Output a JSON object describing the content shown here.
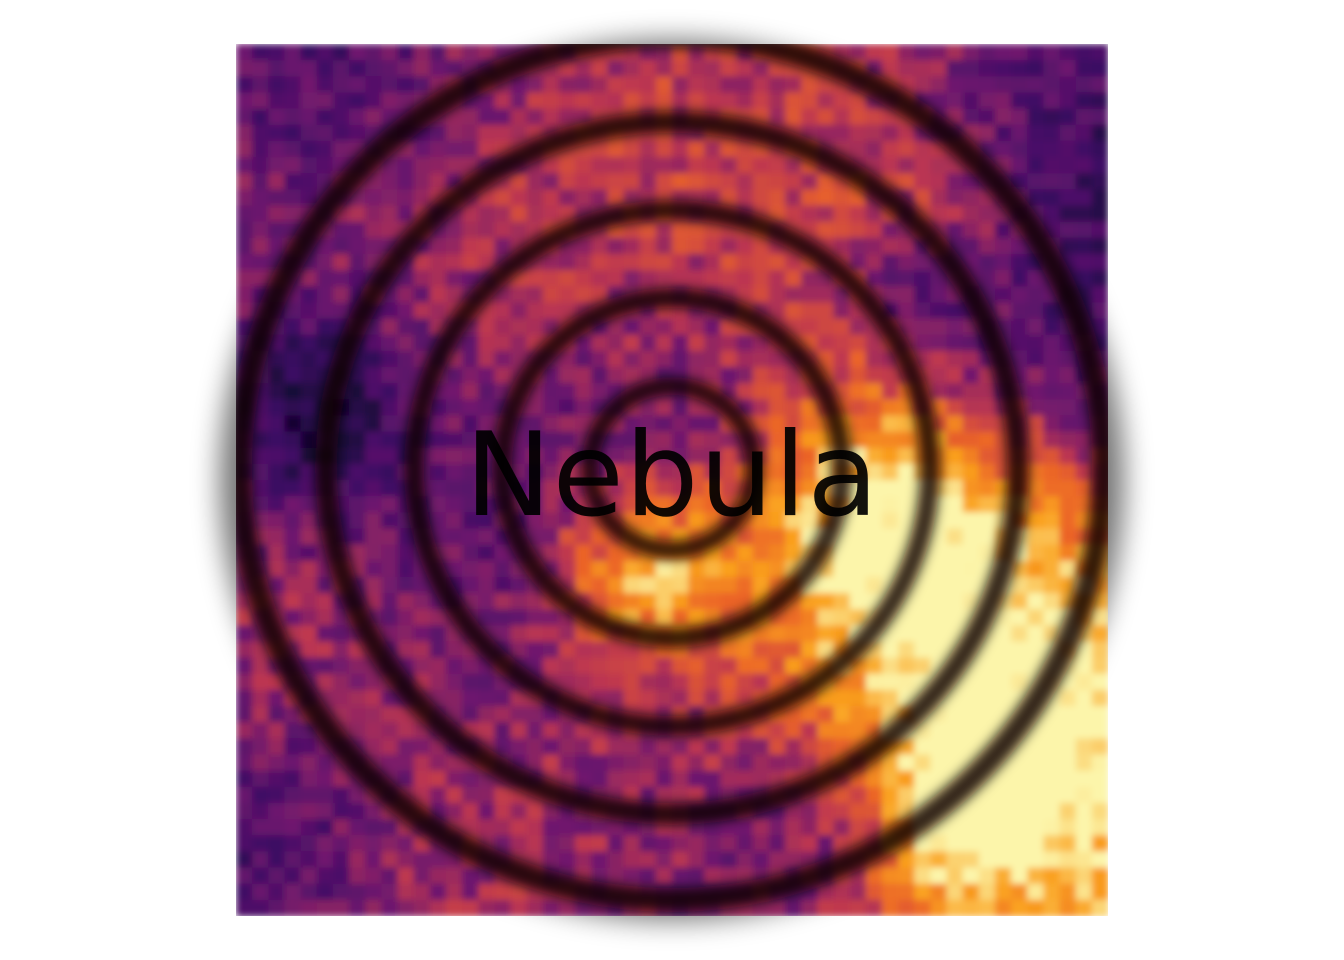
{
  "image": {
    "label": "Nebula",
    "colormap": "inferno",
    "colors": {
      "ring": "#0a0006",
      "label": "#000000",
      "background": "#ffffff"
    }
  }
}
